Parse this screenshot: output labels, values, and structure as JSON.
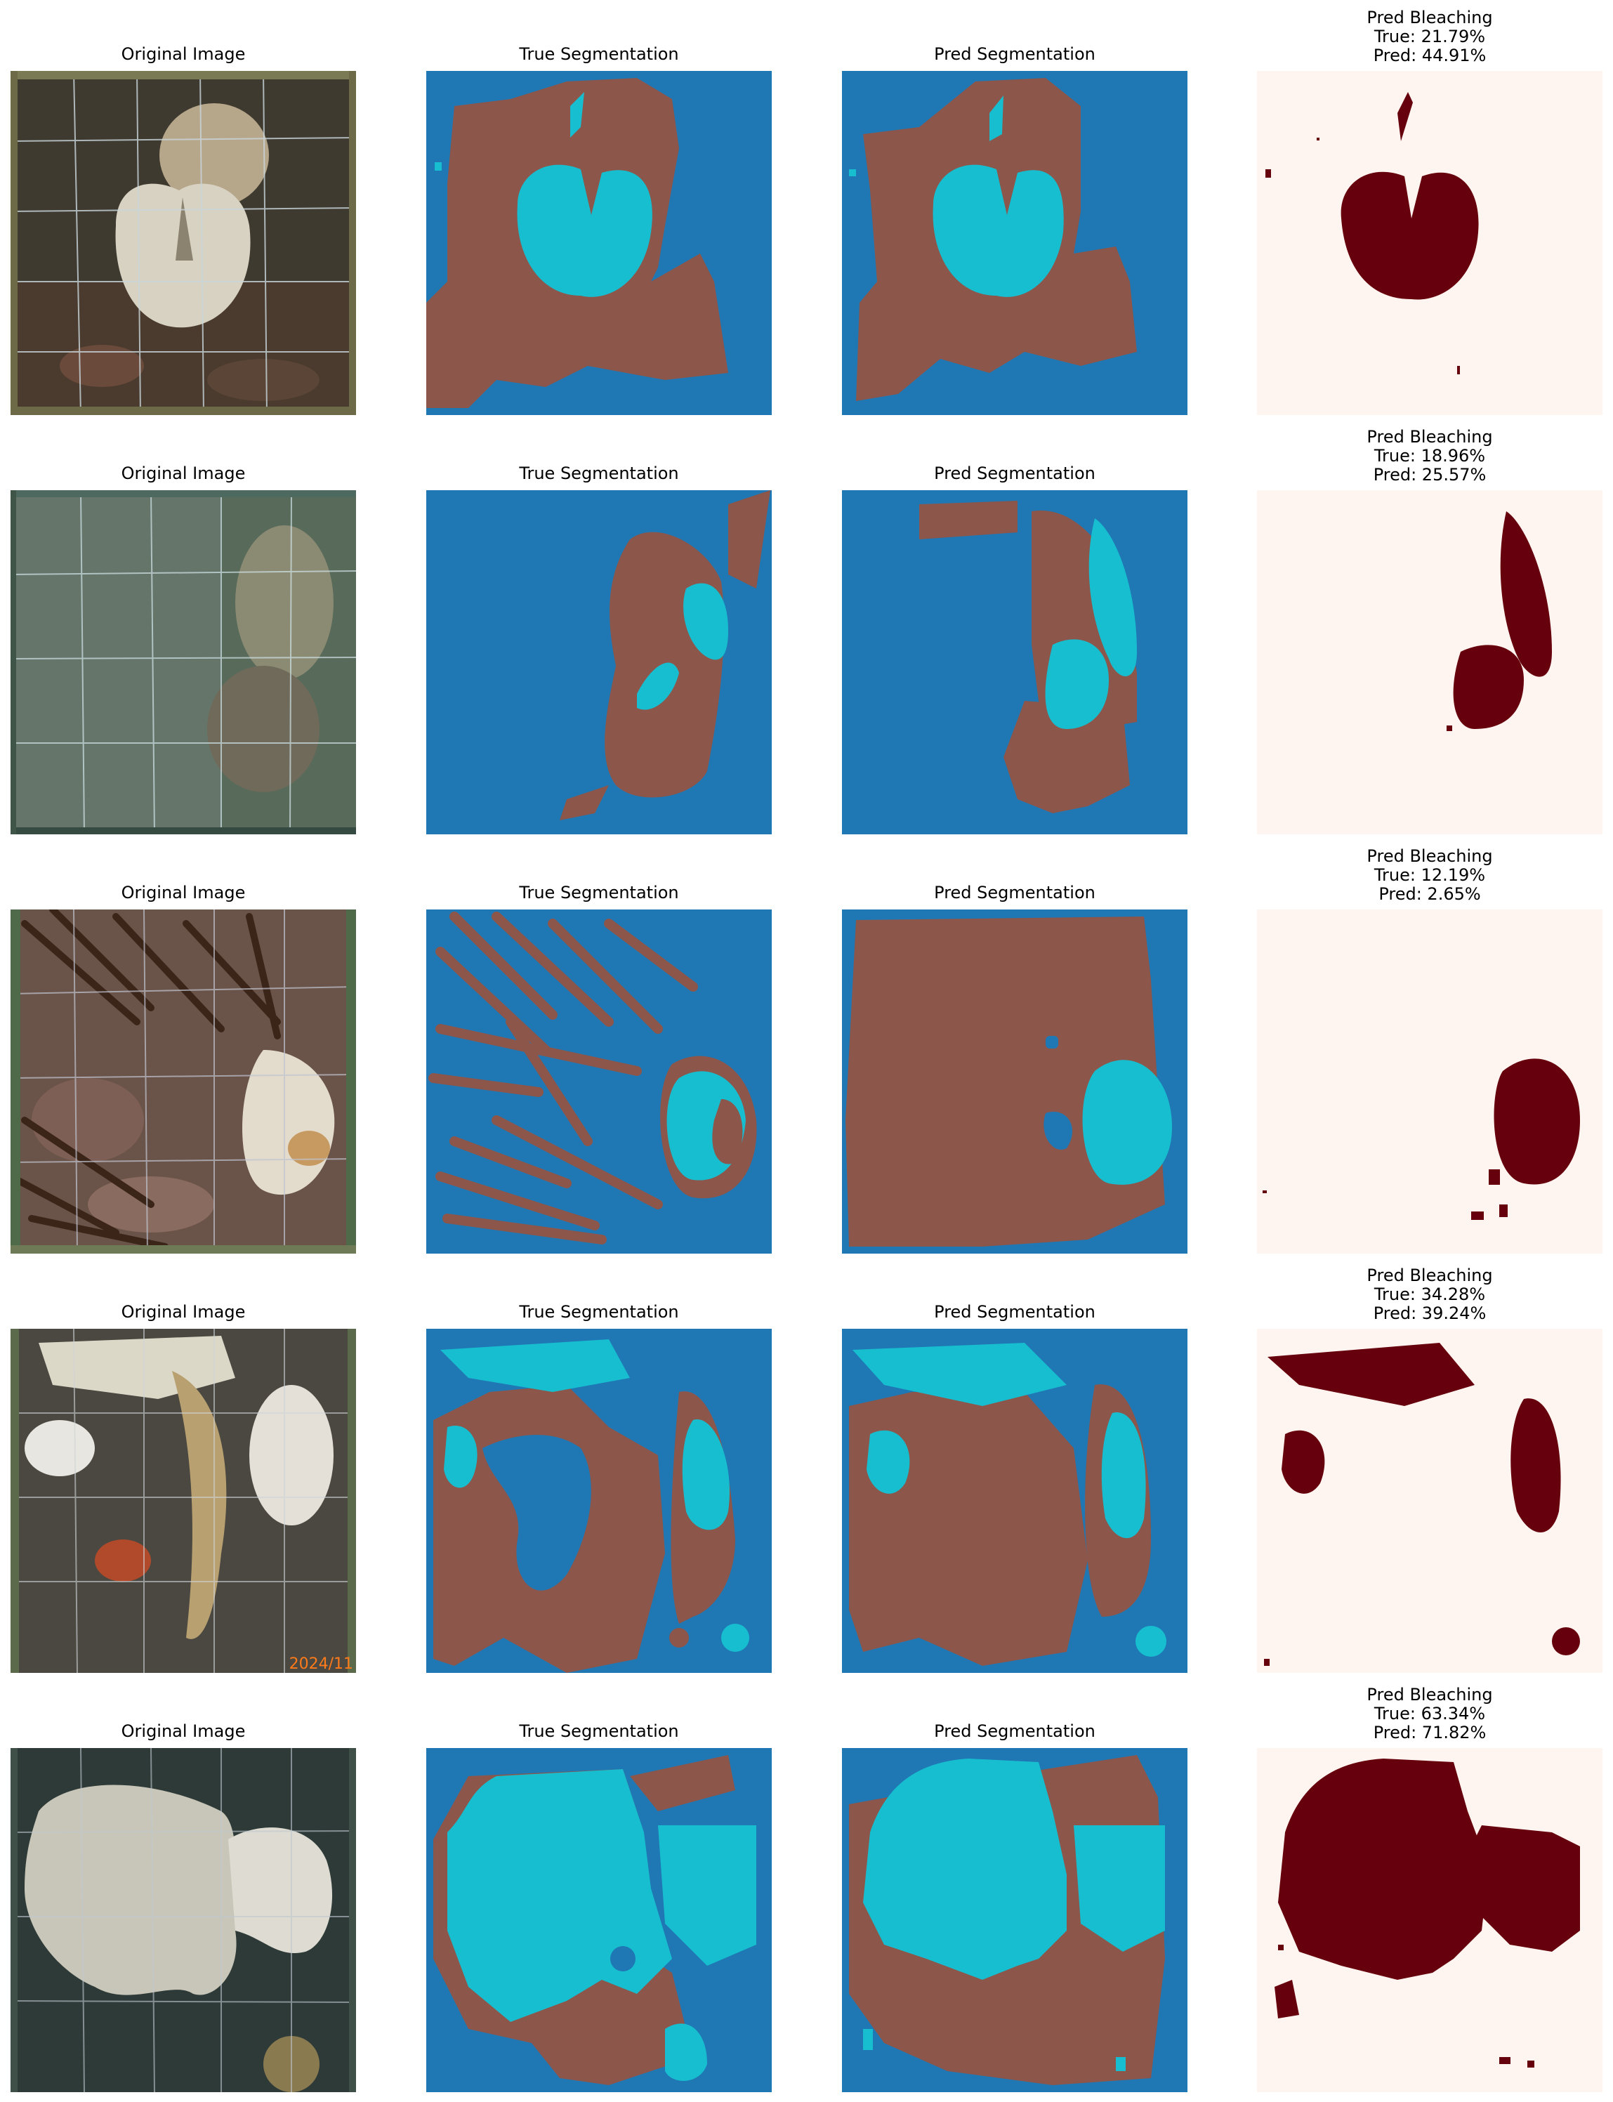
{
  "colors": {
    "seg_background": "#1f77b4",
    "seg_tissue": "#8c564b",
    "seg_bleached": "#17becf",
    "bleach_background": "#fff5f0",
    "bleach_mask": "#67000d"
  },
  "rows": [
    {
      "original_title": "Original Image",
      "true_seg_title": "True Segmentation",
      "pred_seg_title": "Pred Segmentation",
      "bleach_title": "Pred Bleaching",
      "bleach_true": "True: 21.79%",
      "bleach_pred": "Pred: 44.91%"
    },
    {
      "original_title": "Original Image",
      "true_seg_title": "True Segmentation",
      "pred_seg_title": "Pred Segmentation",
      "bleach_title": "Pred Bleaching",
      "bleach_true": "True: 18.96%",
      "bleach_pred": "Pred: 25.57%"
    },
    {
      "original_title": "Original Image",
      "true_seg_title": "True Segmentation",
      "pred_seg_title": "Pred Segmentation",
      "bleach_title": "Pred Bleaching",
      "bleach_true": "True: 12.19%",
      "bleach_pred": "Pred: 2.65%"
    },
    {
      "original_title": "Original Image",
      "true_seg_title": "True Segmentation",
      "pred_seg_title": "Pred Segmentation",
      "bleach_title": "Pred Bleaching",
      "bleach_true": "True: 34.28%",
      "bleach_pred": "Pred: 39.24%",
      "photo_timestamp": "2024/11"
    },
    {
      "original_title": "Original Image",
      "true_seg_title": "True Segmentation",
      "pred_seg_title": "Pred Segmentation",
      "bleach_title": "Pred Bleaching",
      "bleach_true": "True: 63.34%",
      "bleach_pred": "Pred: 71.82%"
    }
  ]
}
